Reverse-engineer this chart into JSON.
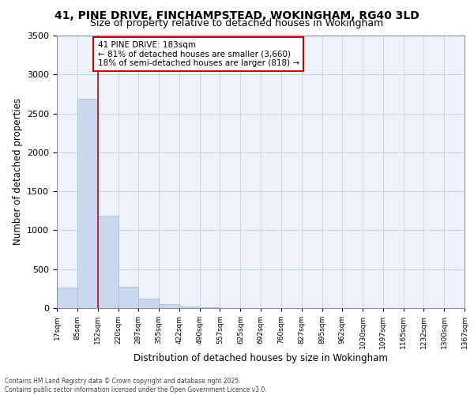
{
  "title": "41, PINE DRIVE, FINCHAMPSTEAD, WOKINGHAM, RG40 3LD",
  "subtitle": "Size of property relative to detached houses in Wokingham",
  "xlabel": "Distribution of detached houses by size in Wokingham",
  "ylabel": "Number of detached properties",
  "footnote1": "Contains HM Land Registry data © Crown copyright and database right 2025.",
  "footnote2": "Contains public sector information licensed under the Open Government Licence v3.0.",
  "bar_edges": [
    17,
    85,
    152,
    220,
    287,
    355,
    422,
    490,
    557,
    625,
    692,
    760,
    827,
    895,
    962,
    1030,
    1097,
    1165,
    1232,
    1300,
    1367
  ],
  "bar_heights": [
    265,
    2690,
    1185,
    275,
    125,
    55,
    25,
    10,
    5,
    4,
    3,
    2,
    2,
    2,
    2,
    1,
    1,
    1,
    1,
    1
  ],
  "bar_color": "#c8d8ee",
  "bar_edge_color": "#a0b8d8",
  "vline_x": 152,
  "vline_color": "#cc0000",
  "annotation_text": "41 PINE DRIVE: 183sqm\n← 81% of detached houses are smaller (3,660)\n18% of semi-detached houses are larger (818) →",
  "annotation_box_color": "#cc0000",
  "annotation_text_color": "#000000",
  "ylim": [
    0,
    3500
  ],
  "xlim_left": 17,
  "xlim_right": 1367,
  "background_color": "#ffffff",
  "plot_bg_color": "#eef3fb",
  "grid_color": "#c0cfe0",
  "title_fontsize": 10,
  "subtitle_fontsize": 9,
  "yticks": [
    0,
    500,
    1000,
    1500,
    2000,
    2500,
    3000,
    3500
  ]
}
